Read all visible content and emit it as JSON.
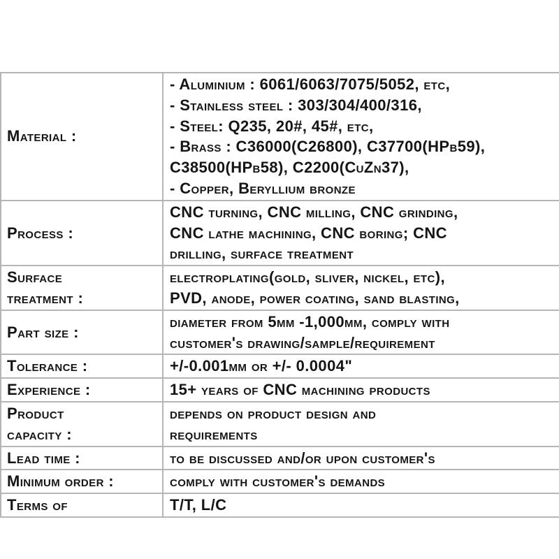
{
  "colors": {
    "background": "#ffffff",
    "border": "#b5b5b5",
    "text": "#151515"
  },
  "table": {
    "rows": [
      {
        "label": "Material :",
        "label_lines": [
          "Material :"
        ],
        "value": "- Aluminium : 6061/6063/7075/5052, etc, - Stainless steel : 303/304/400/316, - Steel: Q235, 20#, 45#, etc, - Brass : C36000(C26800), C37700(HPb59), C38500(HPb58), C2200(CuZn37), - Copper, Beryllium bronze",
        "value_lines": [
          "- Aluminium : 6061/6063/7075/5052, etc,",
          "- Stainless steel : 303/304/400/316,",
          "- Steel: Q235, 20#, 45#, etc,",
          "- Brass : C36000(C26800), C37700(HPb59),",
          "C38500(HPb58), C2200(CuZn37),",
          "- Copper, Beryllium bronze"
        ]
      },
      {
        "label": "Process :",
        "label_lines": [
          "Process :"
        ],
        "value": "CNC turning, CNC milling, CNC grinding, CNC lathe machining, CNC boring; CNC drilling, surface treatment",
        "value_lines": [
          "CNC turning, CNC milling, CNC grinding,",
          "CNC lathe machining, CNC boring; CNC",
          "drilling, surface treatment"
        ]
      },
      {
        "label": "Surface treatment :",
        "label_lines": [
          "Surface",
          "treatment :"
        ],
        "value": "electroplating(gold, sliver, nickel, etc), PVD, anode, power coating, sand blasting,",
        "value_lines": [
          "electroplating(gold, sliver, nickel, etc),",
          "PVD, anode, power coating, sand blasting,"
        ]
      },
      {
        "label": "Part size :",
        "label_lines": [
          "Part size :"
        ],
        "value": "diameter from 5mm -1,000mm, comply with customer's drawing/sample/requirement",
        "value_lines": [
          "diameter from 5mm -1,000mm, comply with",
          "customer's drawing/sample/requirement"
        ]
      },
      {
        "label": "Tolerance :",
        "label_lines": [
          "Tolerance :"
        ],
        "value": "+/-0.001mm or +/- 0.0004\"",
        "value_lines": [
          "+/-0.001mm or +/- 0.0004\""
        ]
      },
      {
        "label": "Experience :",
        "label_lines": [
          "Experience :"
        ],
        "value": "15+ years of CNC machining products",
        "value_lines": [
          "15+ years of CNC machining products"
        ]
      },
      {
        "label": "Product capacity :",
        "label_lines": [
          "Product",
          "capacity :"
        ],
        "value": "depends on product design and requirements",
        "value_lines": [
          "depends on product design and",
          "requirements"
        ]
      },
      {
        "label": "Lead time :",
        "label_lines": [
          "Lead time :"
        ],
        "value": "to be discussed and/or upon customer's",
        "value_lines": [
          "to be discussed and/or upon customer's"
        ]
      },
      {
        "label": "Minimum order :",
        "label_lines": [
          "Minimum order :"
        ],
        "value": "comply with customer's demands",
        "value_lines": [
          "comply with customer's demands"
        ]
      },
      {
        "label": "Terms of",
        "label_lines": [
          "Terms of"
        ],
        "value": "T/T, L/C",
        "value_lines": [
          "T/T, L/C"
        ]
      }
    ]
  }
}
